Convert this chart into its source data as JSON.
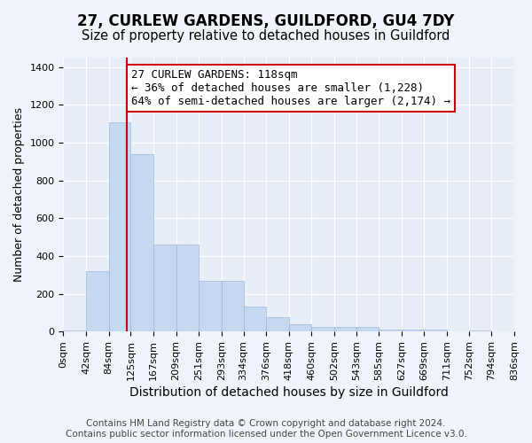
{
  "title": "27, CURLEW GARDENS, GUILDFORD, GU4 7DY",
  "subtitle": "Size of property relative to detached houses in Guildford",
  "xlabel": "Distribution of detached houses by size in Guildford",
  "ylabel": "Number of detached properties",
  "bar_color": "#c5d8f0",
  "bar_edgecolor": "#a0b8d8",
  "background_color": "#f0f4fa",
  "annotation_text": "27 CURLEW GARDENS: 118sqm\n← 36% of detached houses are smaller (1,228)\n64% of semi-detached houses are larger (2,174) →",
  "vline_x": 118,
  "vline_color": "#cc0000",
  "annotation_box_edgecolor": "#cc0000",
  "xlim": [
    0,
    836
  ],
  "ylim": [
    0,
    1450
  ],
  "yticks": [
    0,
    200,
    400,
    600,
    800,
    1000,
    1200,
    1400
  ],
  "bin_edges": [
    0,
    42,
    84,
    125,
    167,
    209,
    251,
    293,
    334,
    376,
    418,
    460,
    502,
    543,
    585,
    627,
    669,
    711,
    752,
    794,
    836
  ],
  "bin_labels": [
    "0sqm",
    "42sqm",
    "84sqm",
    "125sqm",
    "167sqm",
    "209sqm",
    "251sqm",
    "293sqm",
    "334sqm",
    "376sqm",
    "418sqm",
    "460sqm",
    "502sqm",
    "543sqm",
    "585sqm",
    "627sqm",
    "669sqm",
    "711sqm",
    "752sqm",
    "794sqm",
    "836sqm"
  ],
  "bar_heights": [
    5,
    320,
    1110,
    940,
    460,
    460,
    270,
    270,
    130,
    75,
    40,
    25,
    25,
    25,
    10,
    10,
    10,
    0,
    5,
    0
  ],
  "footer_text": "Contains HM Land Registry data © Crown copyright and database right 2024.\nContains public sector information licensed under the Open Government Licence v3.0.",
  "title_fontsize": 12,
  "subtitle_fontsize": 10.5,
  "xlabel_fontsize": 10,
  "ylabel_fontsize": 9,
  "tick_fontsize": 8,
  "annotation_fontsize": 9,
  "footer_fontsize": 7.5,
  "grid_color": "#ffffff",
  "axis_bg_color": "#e8eef8"
}
